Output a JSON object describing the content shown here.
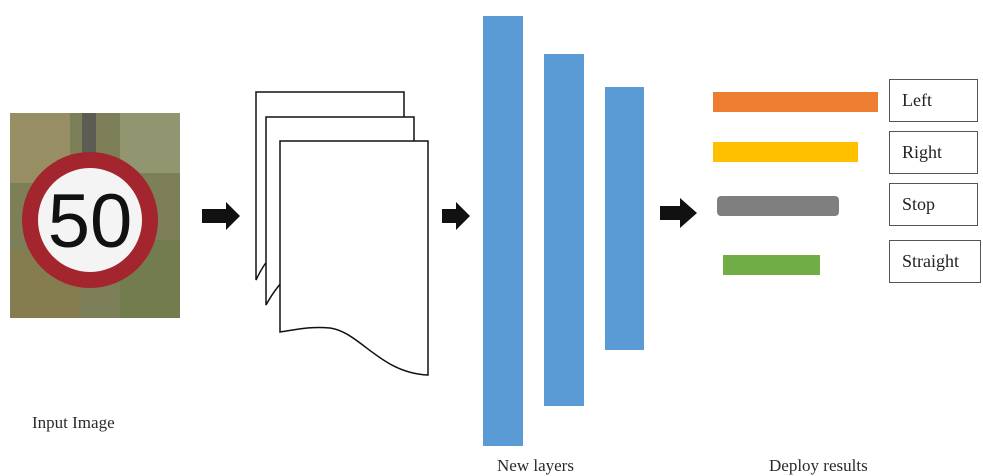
{
  "input_image": {
    "caption": "Input Image",
    "sign_text": "50",
    "colors": {
      "ring": "#a3262e",
      "face": "#f4f4f4",
      "digits": "#111111",
      "foliage": "#7d7f58"
    }
  },
  "new_layers": {
    "caption": "New layers",
    "color": "#5b9bd5"
  },
  "deploy_results": {
    "caption": "Deploy results",
    "outputs": [
      {
        "label": "Left",
        "color": "#ed7d31",
        "score": 1.0
      },
      {
        "label": "Right",
        "color": "#ffc000",
        "score": 0.88
      },
      {
        "label": "Stop",
        "color": "#7f7f7f",
        "score": 0.74
      },
      {
        "label": "Straight",
        "color": "#70ad47",
        "score": 0.59
      }
    ]
  }
}
